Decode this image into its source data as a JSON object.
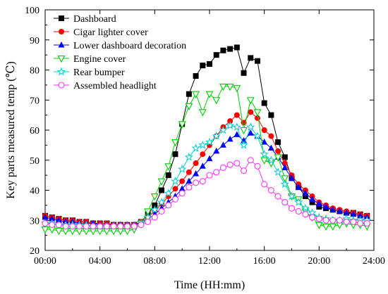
{
  "chart_data": {
    "type": "line",
    "xlabel": "Time (HH:mm)",
    "ylabel": "Key parts measured temp (℃)",
    "xlim": [
      0,
      24
    ],
    "ylim": [
      20,
      100
    ],
    "x_ticks": [
      0,
      4,
      8,
      12,
      16,
      20,
      24
    ],
    "x_tick_labels": [
      "00:00",
      "04:00",
      "08:00",
      "12:00",
      "16:00",
      "20:00",
      "24:00"
    ],
    "y_ticks": [
      20,
      30,
      40,
      50,
      60,
      70,
      80,
      90,
      100
    ],
    "y_tick_labels": [
      "20",
      "30",
      "40",
      "50",
      "60",
      "70",
      "80",
      "90",
      "100"
    ],
    "legend_position": "top-left",
    "grid": false,
    "x": [
      0,
      0.5,
      1,
      1.5,
      2,
      2.5,
      3,
      3.5,
      4,
      4.5,
      5,
      5.5,
      6,
      6.5,
      7,
      7.5,
      8,
      8.5,
      9,
      9.5,
      10,
      10.5,
      11,
      11.5,
      12,
      12.5,
      13,
      13.5,
      14,
      14.5,
      15,
      15.5,
      16,
      16.5,
      17,
      17.5,
      18,
      18.5,
      19,
      19.5,
      20,
      20.5,
      21,
      21.5,
      22,
      22.5,
      23,
      23.5
    ],
    "series": [
      {
        "name": "Dashboard",
        "color": "#000000",
        "marker": "square",
        "values": [
          31.5,
          31,
          30.5,
          30,
          30,
          29.5,
          29.5,
          29,
          29,
          29,
          28.5,
          28.5,
          28.5,
          28.5,
          29.5,
          32,
          35,
          40,
          45,
          52,
          62,
          72,
          78,
          81.5,
          82,
          85,
          86.5,
          87,
          87.5,
          79,
          84,
          83,
          69,
          65,
          56,
          51,
          44,
          41,
          38,
          36,
          34.5,
          34,
          33.5,
          33,
          32.5,
          32.5,
          32,
          31.5
        ]
      },
      {
        "name": "Cigar lighter cover",
        "color": "#ff0000",
        "marker": "circle",
        "values": [
          31.5,
          31,
          30.5,
          30,
          30,
          29.5,
          29.5,
          29,
          29,
          29,
          28.5,
          28.5,
          28.5,
          28.5,
          29.5,
          31,
          33,
          35.5,
          38,
          40.5,
          43,
          46,
          49,
          52,
          55,
          58,
          61,
          63,
          65,
          62.5,
          66,
          64,
          60,
          58,
          53,
          49,
          45,
          42,
          40,
          38,
          36,
          35,
          34,
          33.5,
          33,
          32.5,
          32,
          31.5
        ]
      },
      {
        "name": "Lower dashboard decoration",
        "color": "#0000ff",
        "marker": "triangle",
        "values": [
          31,
          30.5,
          30,
          29.5,
          29.5,
          29,
          29,
          29,
          28.5,
          28.5,
          28.5,
          28.5,
          28.5,
          28.5,
          29,
          30.5,
          32,
          34,
          36,
          38,
          40.5,
          43,
          45.5,
          48,
          50.5,
          53,
          55,
          57,
          58.5,
          56.5,
          59,
          58,
          56,
          54,
          51,
          47.5,
          44,
          41,
          39,
          37,
          35.5,
          34.5,
          33.5,
          33,
          32.5,
          32,
          31.5,
          31
        ]
      },
      {
        "name": "Engine cover",
        "color": "#00cc00",
        "marker": "triangle-down",
        "values": [
          27,
          27,
          26.5,
          26.5,
          26.5,
          26.5,
          26.5,
          26.5,
          26.5,
          26.5,
          26.5,
          26.5,
          26.5,
          27,
          29,
          33,
          38,
          43,
          48,
          56,
          62,
          68,
          72,
          66,
          72,
          70,
          74.5,
          74.5,
          74,
          60,
          70,
          66,
          50,
          49,
          51,
          44,
          38,
          37,
          33,
          31,
          28.5,
          28,
          28,
          28.5,
          29,
          28.5,
          28.5,
          28
        ]
      },
      {
        "name": "Rear bumper",
        "color": "#00cccc",
        "marker": "star",
        "values": [
          29,
          29,
          28.5,
          28.5,
          28.5,
          28.5,
          28.5,
          28,
          28,
          28,
          28,
          28,
          28,
          28,
          29,
          31,
          33.5,
          36,
          39,
          43,
          47,
          51,
          54,
          55,
          56,
          58,
          60,
          61.5,
          61,
          55,
          61,
          58,
          52,
          50,
          46,
          42,
          38,
          36,
          34,
          32.5,
          31,
          30.5,
          30,
          30,
          30.5,
          30,
          30,
          30
        ]
      },
      {
        "name": "Assembled headlight",
        "color": "#ff33ff",
        "marker": "circle-open",
        "values": [
          29,
          28.5,
          28.5,
          28,
          28,
          28,
          28,
          28,
          28,
          28,
          28,
          28,
          28,
          28,
          28.5,
          29.5,
          31,
          33,
          35,
          37,
          39,
          41,
          42.5,
          43,
          45,
          46,
          47.5,
          48.5,
          49,
          46.5,
          50,
          48,
          42,
          40,
          38,
          36,
          34,
          33,
          32,
          31,
          30.5,
          30,
          30,
          30,
          29.5,
          29.5,
          29,
          29
        ]
      }
    ]
  }
}
